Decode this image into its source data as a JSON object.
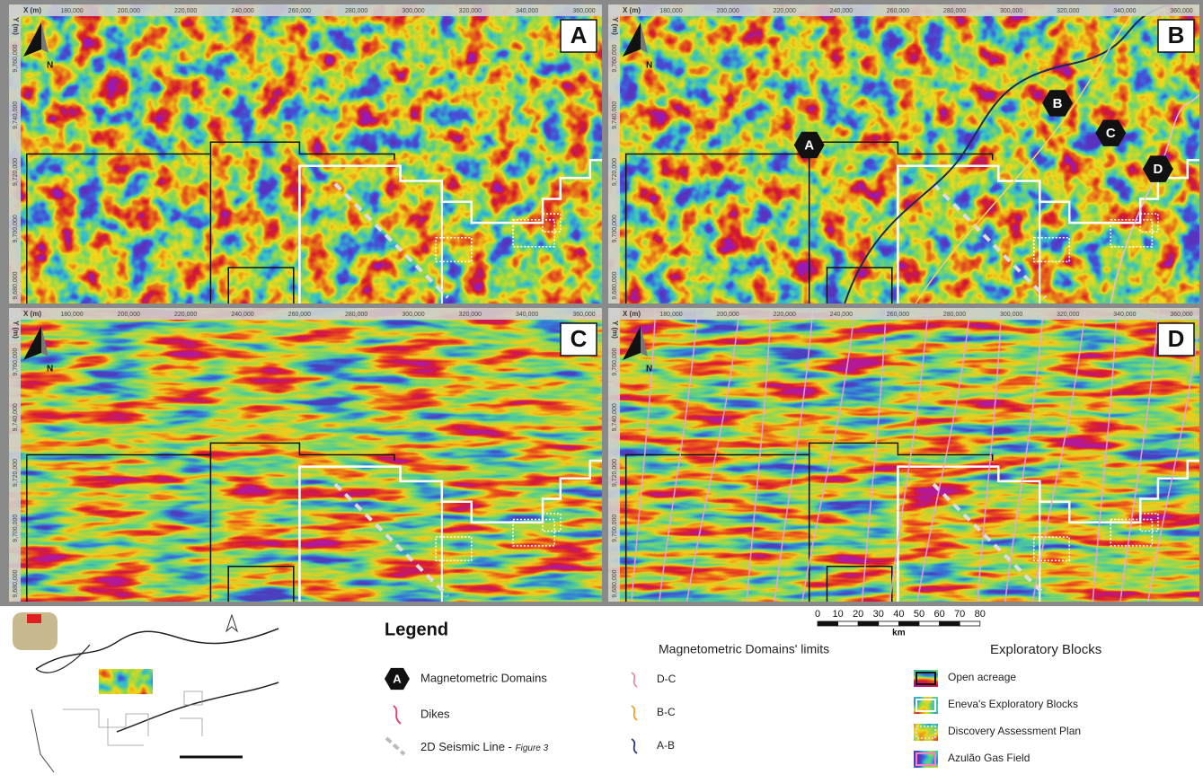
{
  "panels": [
    {
      "label": "A"
    },
    {
      "label": "B"
    },
    {
      "label": "C"
    },
    {
      "label": "D"
    }
  ],
  "axes": {
    "x_label": "X (m)",
    "y_label": "Y (m)",
    "x_ticks": [
      "180,000",
      "200,000",
      "220,000",
      "240,000",
      "260,000",
      "280,000",
      "300,000",
      "320,000",
      "340,000",
      "360,000"
    ],
    "y_ticks": [
      "9,760,000",
      "9,740,000",
      "9,720,000",
      "9,700,000",
      "9,680,000"
    ]
  },
  "north": "N",
  "domains": [
    "A",
    "B",
    "C",
    "D"
  ],
  "scale_bar": {
    "ticks": [
      "0",
      "10",
      "20",
      "30",
      "40",
      "50",
      "60",
      "70",
      "80"
    ],
    "unit": "km"
  },
  "legend": {
    "title": "Legend",
    "domain_symbol": "A",
    "domains": "Magnetometric Domains",
    "dikes": "Dikes",
    "seismic": "2D Seismic Line - ",
    "seismic_ref": "Figure 3",
    "limits_title": "Magnetometric Domains' limits",
    "limits": [
      "D-C",
      "B-C",
      "A-B"
    ],
    "blocks_title": "Exploratory Blocks",
    "blocks": [
      "Open acreage",
      "Eneva's Exploratory Blocks",
      "Discovery Assessment Plan",
      "Azulão Gas Field"
    ]
  }
}
